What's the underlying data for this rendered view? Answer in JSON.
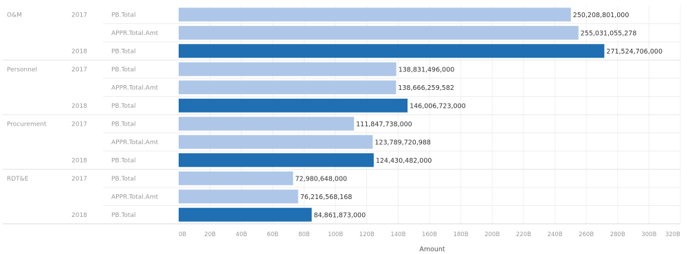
{
  "chart_data": {
    "type": "bar",
    "orientation": "horizontal",
    "xlabel": "Amount",
    "xlim": [
      0,
      320000000000
    ],
    "x_ticks": [
      "0B",
      "20B",
      "40B",
      "60B",
      "80B",
      "100B",
      "120B",
      "140B",
      "160B",
      "180B",
      "200B",
      "220B",
      "240B",
      "260B",
      "280B",
      "300B",
      "320B"
    ],
    "grid": true,
    "colors": {
      "2017": "#aec7e8",
      "2018": "#1f6fb2"
    },
    "groups": [
      {
        "category": "O&M",
        "rows": [
          {
            "year": "2017",
            "measure": "PB.Total",
            "value": 250208801000,
            "label": "250,208,801,000"
          },
          {
            "year": "",
            "measure": "APPR.Total.Amt",
            "value": 255031055278,
            "label": "255,031,055,278"
          },
          {
            "year": "2018",
            "measure": "PB.Total",
            "value": 271524706000,
            "label": "271,524,706,000"
          }
        ]
      },
      {
        "category": "Personnel",
        "rows": [
          {
            "year": "2017",
            "measure": "PB.Total",
            "value": 138831496000,
            "label": "138,831,496,000"
          },
          {
            "year": "",
            "measure": "APPR.Total.Amt",
            "value": 138666259582,
            "label": "138,666,259,582"
          },
          {
            "year": "2018",
            "measure": "PB.Total",
            "value": 146006723000,
            "label": "146,006,723,000"
          }
        ]
      },
      {
        "category": "Procurement",
        "rows": [
          {
            "year": "2017",
            "measure": "PB.Total",
            "value": 111847738000,
            "label": "111,847,738,000"
          },
          {
            "year": "",
            "measure": "APPR.Total.Amt",
            "value": 123789720988,
            "label": "123,789,720,988"
          },
          {
            "year": "2018",
            "measure": "PB.Total",
            "value": 124430482000,
            "label": "124,430,482,000"
          }
        ]
      },
      {
        "category": "RDT&E",
        "rows": [
          {
            "year": "2017",
            "measure": "PB.Total",
            "value": 72980648000,
            "label": "72,980,648,000"
          },
          {
            "year": "",
            "measure": "APPR.Total.Amt",
            "value": 76216568168,
            "label": "76,216,568,168"
          },
          {
            "year": "2018",
            "measure": "PB.Total",
            "value": 84861873000,
            "label": "84,861,873,000"
          }
        ]
      }
    ]
  }
}
